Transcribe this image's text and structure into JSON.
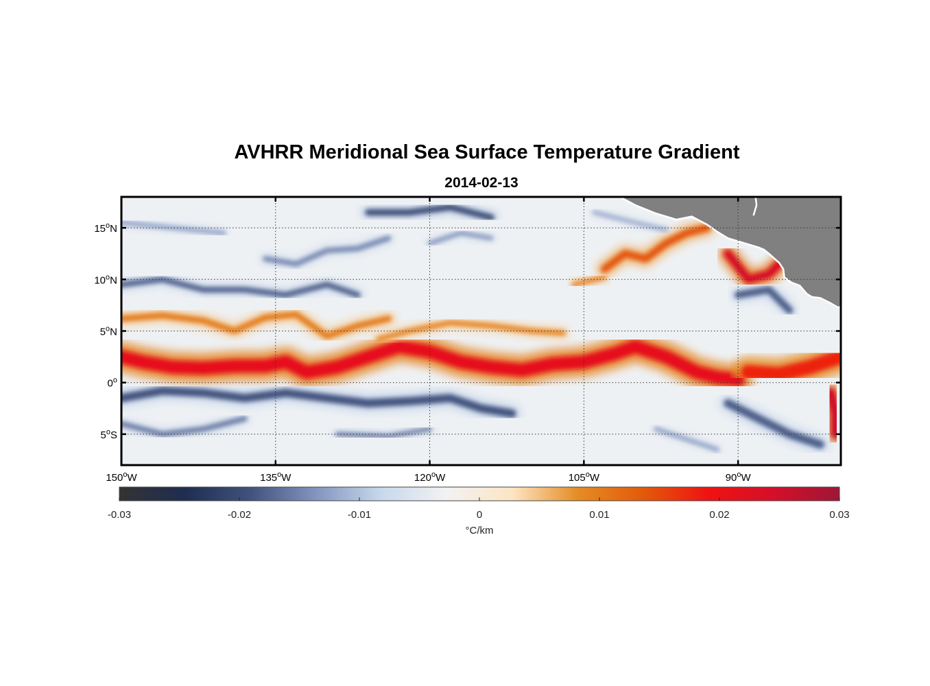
{
  "title": "AVHRR Meridional Sea Surface Temperature Gradient",
  "subtitle": "2014-02-13",
  "map": {
    "lon_range": [
      -150,
      -80
    ],
    "lat_range": [
      -8,
      18
    ],
    "grid": "dotted",
    "lon_ticks": [
      {
        "value": -150,
        "label": "150",
        "sup": "o",
        "hemi": "W"
      },
      {
        "value": -135,
        "label": "135",
        "sup": "o",
        "hemi": "W"
      },
      {
        "value": -120,
        "label": "120",
        "sup": "o",
        "hemi": "W"
      },
      {
        "value": -105,
        "label": "105",
        "sup": "o",
        "hemi": "W"
      },
      {
        "value": -90,
        "label": "90",
        "sup": "o",
        "hemi": "W"
      }
    ],
    "lat_ticks": [
      {
        "value": 15,
        "label": "15",
        "sup": "o",
        "hemi": "N"
      },
      {
        "value": 10,
        "label": "10",
        "sup": "o",
        "hemi": "N"
      },
      {
        "value": 5,
        "label": "5",
        "sup": "o",
        "hemi": "N"
      },
      {
        "value": 0,
        "label": "0",
        "sup": "o",
        "hemi": ""
      },
      {
        "value": -5,
        "label": "5",
        "sup": "o",
        "hemi": "S"
      }
    ],
    "land_color": "#808080",
    "features": [
      {
        "kind": "front",
        "sign": 1,
        "pts": [
          [
            -150,
            2.5
          ],
          [
            -148,
            2.0
          ],
          [
            -145,
            1.5
          ],
          [
            -142,
            1.4
          ],
          [
            -139,
            1.6
          ],
          [
            -136,
            1.6
          ],
          [
            -134,
            2.0
          ],
          [
            -132,
            1.0
          ],
          [
            -129,
            1.5
          ],
          [
            -126,
            2.5
          ],
          [
            -123,
            3.5
          ],
          [
            -120,
            3.0
          ],
          [
            -117,
            2.0
          ],
          [
            -114,
            1.5
          ],
          [
            -111,
            1.2
          ],
          [
            -108,
            1.8
          ],
          [
            -105,
            2.0
          ],
          [
            -102,
            2.8
          ],
          [
            -100,
            3.5
          ],
          [
            -97,
            2.5
          ],
          [
            -94,
            1.0
          ],
          [
            -92,
            0.5
          ],
          [
            -90,
            0.3
          ]
        ],
        "width": 1.3,
        "strength": 0.021
      },
      {
        "kind": "front",
        "sign": 1,
        "pts": [
          [
            -150,
            6.2
          ],
          [
            -146,
            6.5
          ],
          [
            -142,
            6.0
          ],
          [
            -139,
            5.0
          ],
          [
            -136,
            6.3
          ],
          [
            -133,
            6.6
          ],
          [
            -130,
            4.5
          ],
          [
            -127,
            5.5
          ],
          [
            -124,
            6.2
          ]
        ],
        "width": 0.6,
        "strength": 0.01
      },
      {
        "kind": "front",
        "sign": 1,
        "pts": [
          [
            -125,
            4.2
          ],
          [
            -122,
            5.0
          ],
          [
            -118,
            5.8
          ],
          [
            -114,
            5.5
          ],
          [
            -110,
            5.0
          ],
          [
            -107,
            4.8
          ]
        ],
        "width": 0.5,
        "strength": 0.009
      },
      {
        "kind": "front",
        "sign": 1,
        "pts": [
          [
            -89,
            1.0
          ],
          [
            -86,
            0.8
          ],
          [
            -83,
            1.5
          ],
          [
            -80,
            2.5
          ]
        ],
        "width": 1.4,
        "strength": 0.018
      },
      {
        "kind": "front",
        "sign": 1,
        "pts": [
          [
            -81,
            -1.0
          ],
          [
            -80.5,
            -3.0
          ],
          [
            -80.5,
            -5.0
          ]
        ],
        "width": 0.9,
        "strength": 0.025
      },
      {
        "kind": "front",
        "sign": 1,
        "pts": [
          [
            -103,
            11.0
          ],
          [
            -101,
            12.5
          ],
          [
            -99,
            12.0
          ],
          [
            -97,
            13.5
          ],
          [
            -95,
            14.5
          ],
          [
            -93,
            15.0
          ]
        ],
        "width": 0.7,
        "strength": 0.014
      },
      {
        "kind": "front",
        "sign": 1,
        "pts": [
          [
            -91,
            12.5
          ],
          [
            -89,
            10.0
          ],
          [
            -87,
            10.5
          ],
          [
            -86,
            11.5
          ]
        ],
        "width": 0.8,
        "strength": 0.024
      },
      {
        "kind": "front",
        "sign": 1,
        "pts": [
          [
            -106,
            9.5
          ],
          [
            -103,
            10.2
          ]
        ],
        "width": 0.4,
        "strength": 0.01
      },
      {
        "kind": "front",
        "sign": -1,
        "pts": [
          [
            -150,
            -1.5
          ],
          [
            -146,
            -0.8
          ],
          [
            -142,
            -1.0
          ],
          [
            -138,
            -1.5
          ],
          [
            -134,
            -1.0
          ],
          [
            -130,
            -1.5
          ],
          [
            -126,
            -2.0
          ],
          [
            -122,
            -1.8
          ],
          [
            -118,
            -1.5
          ],
          [
            -115,
            -2.5
          ],
          [
            -112,
            -3.0
          ]
        ],
        "width": 0.8,
        "strength": 0.019
      },
      {
        "kind": "front",
        "sign": -1,
        "pts": [
          [
            -150,
            -4.0
          ],
          [
            -146,
            -5.0
          ],
          [
            -142,
            -4.5
          ],
          [
            -138,
            -3.5
          ]
        ],
        "width": 0.5,
        "strength": 0.016
      },
      {
        "kind": "front",
        "sign": -1,
        "pts": [
          [
            -129,
            -5.0
          ],
          [
            -124,
            -5.2
          ],
          [
            -120,
            -4.5
          ]
        ],
        "width": 0.4,
        "strength": 0.016
      },
      {
        "kind": "front",
        "sign": -1,
        "pts": [
          [
            -150,
            9.5
          ],
          [
            -146,
            10.0
          ],
          [
            -142,
            9.0
          ],
          [
            -138,
            9.0
          ],
          [
            -134,
            8.5
          ],
          [
            -130,
            9.5
          ],
          [
            -127,
            8.5
          ]
        ],
        "width": 0.55,
        "strength": 0.018
      },
      {
        "kind": "front",
        "sign": -1,
        "pts": [
          [
            -126,
            16.5
          ],
          [
            -122,
            16.5
          ],
          [
            -118,
            17.0
          ],
          [
            -114,
            16.0
          ]
        ],
        "width": 0.6,
        "strength": 0.02
      },
      {
        "kind": "front",
        "sign": -1,
        "pts": [
          [
            -136,
            12.0
          ],
          [
            -133,
            11.5
          ],
          [
            -130,
            12.8
          ],
          [
            -127,
            13.0
          ],
          [
            -124,
            14.0
          ]
        ],
        "width": 0.5,
        "strength": 0.015
      },
      {
        "kind": "front",
        "sign": -1,
        "pts": [
          [
            -150,
            15.5
          ],
          [
            -145,
            15.0
          ],
          [
            -140,
            14.5
          ]
        ],
        "width": 0.4,
        "strength": 0.013
      },
      {
        "kind": "front",
        "sign": -1,
        "pts": [
          [
            -91,
            -2.0
          ],
          [
            -88,
            -3.5
          ],
          [
            -85,
            -5.0
          ],
          [
            -82,
            -6.0
          ]
        ],
        "width": 0.8,
        "strength": 0.018
      },
      {
        "kind": "front",
        "sign": -1,
        "pts": [
          [
            -90,
            8.5
          ],
          [
            -87,
            9.0
          ],
          [
            -85,
            7.0
          ]
        ],
        "width": 0.7,
        "strength": 0.018
      },
      {
        "kind": "front",
        "sign": -1,
        "pts": [
          [
            -98,
            -4.5
          ],
          [
            -95,
            -5.5
          ],
          [
            -92,
            -6.5
          ]
        ],
        "width": 0.4,
        "strength": 0.013
      },
      {
        "kind": "front",
        "sign": -1,
        "pts": [
          [
            -120,
            13.5
          ],
          [
            -117,
            14.5
          ],
          [
            -114,
            14.0
          ]
        ],
        "width": 0.4,
        "strength": 0.014
      },
      {
        "kind": "front",
        "sign": -1,
        "pts": [
          [
            -104,
            16.5
          ],
          [
            -100,
            15.5
          ],
          [
            -97,
            14.8
          ]
        ],
        "width": 0.4,
        "strength": 0.012
      }
    ],
    "land": [
      [
        [
          -101.5,
          18
        ],
        [
          -100,
          17.2
        ],
        [
          -98,
          16.4
        ],
        [
          -96,
          15.8
        ],
        [
          -94.5,
          16.1
        ],
        [
          -93,
          15.3
        ],
        [
          -92,
          14.6
        ],
        [
          -91,
          14.0
        ],
        [
          -90,
          13.7
        ],
        [
          -89,
          13.4
        ],
        [
          -88,
          13.1
        ],
        [
          -87.5,
          12.9
        ],
        [
          -87,
          12.5
        ],
        [
          -86,
          11.6
        ],
        [
          -85.6,
          11.0
        ],
        [
          -85.5,
          10.2
        ],
        [
          -84.8,
          9.7
        ],
        [
          -84,
          9.4
        ],
        [
          -83.3,
          8.6
        ],
        [
          -82.8,
          8.3
        ],
        [
          -82,
          8.2
        ],
        [
          -81,
          7.7
        ],
        [
          -80.3,
          7.3
        ],
        [
          -80,
          7.3
        ],
        [
          -80,
          18
        ],
        [
          -101.5,
          18
        ]
      ]
    ],
    "land_west_notch": [
      [
        -88.5,
        16.2
      ],
      [
        -88.2,
        17.2
      ],
      [
        -88.3,
        18
      ]
    ]
  },
  "colorbar": {
    "min": -0.03,
    "max": 0.03,
    "tick_values": [
      -0.03,
      -0.02,
      -0.01,
      0,
      0.01,
      0.02,
      0.03
    ],
    "tick_labels": [
      "-0.03",
      "-0.02",
      "-0.01",
      "0",
      "0.01",
      "0.02",
      "0.03"
    ],
    "units": "°C/km",
    "stops": [
      "#333333",
      "#1e2d50",
      "#41527d",
      "#8394be",
      "#c8d8ec",
      "#f2f2f2",
      "#fde5c4",
      "#e58c24",
      "#e35a0a",
      "#ef1212",
      "#d4102a",
      "#9e1637"
    ]
  }
}
